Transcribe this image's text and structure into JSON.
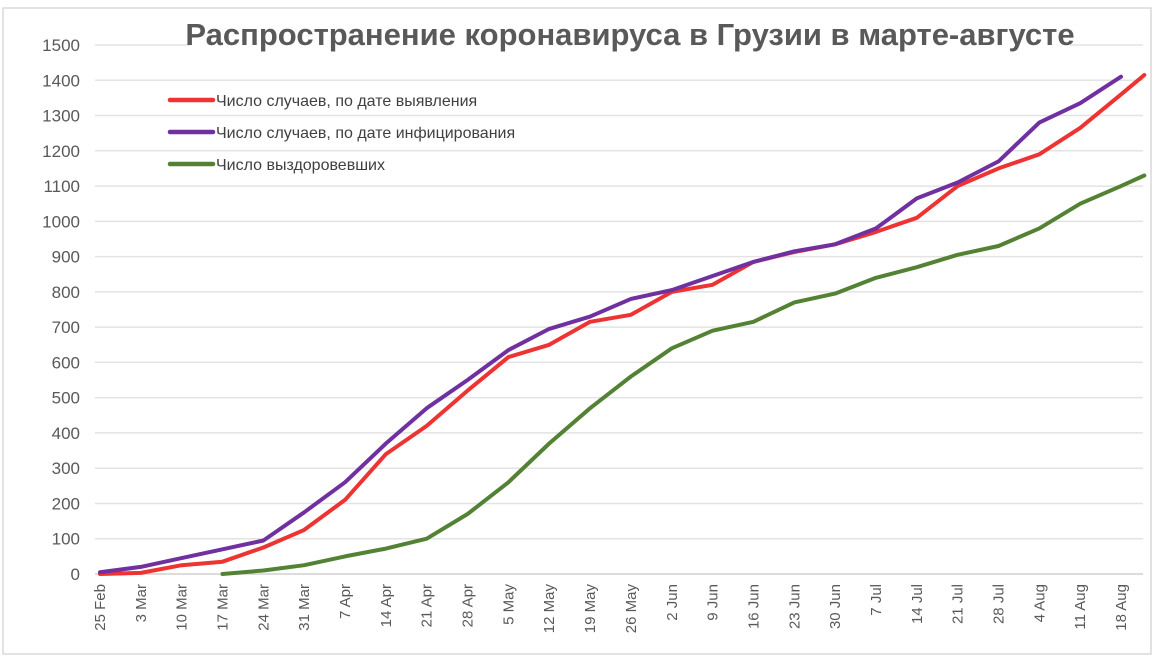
{
  "chart_data": {
    "type": "line",
    "title": "Распространение коронавируса в Грузии в марте-августе",
    "ylim": [
      0,
      1500
    ],
    "yticks": [
      0,
      100,
      200,
      300,
      400,
      500,
      600,
      700,
      800,
      900,
      1000,
      1100,
      1200,
      1300,
      1400,
      1500
    ],
    "xticks": [
      "25 Feb",
      "3 Mar",
      "10 Mar",
      "17 Mar",
      "24 Mar",
      "31 Mar",
      "7 Apr",
      "14 Apr",
      "21 Apr",
      "28 Apr",
      "5 May",
      "12 May",
      "19 May",
      "26 May",
      "2 Jun",
      "9 Jun",
      "16 Jun",
      "23 Jun",
      "30 Jun",
      "7 Jul",
      "14 Jul",
      "21 Jul",
      "28 Jul",
      "4 Aug",
      "11 Aug",
      "18 Aug"
    ],
    "grid": true,
    "legend": "top-left",
    "series": [
      {
        "name": "Число случаев, по дате выявления",
        "color": "#ee3333",
        "x": [
          "25 Feb",
          "3 Mar",
          "10 Mar",
          "17 Mar",
          "24 Mar",
          "31 Mar",
          "7 Apr",
          "14 Apr",
          "21 Apr",
          "28 Apr",
          "5 May",
          "12 May",
          "19 May",
          "26 May",
          "2 Jun",
          "9 Jun",
          "16 Jun",
          "23 Jun",
          "30 Jun",
          "7 Jul",
          "14 Jul",
          "21 Jul",
          "28 Jul",
          "4 Aug",
          "11 Aug",
          "18 Aug",
          "22 Aug"
        ],
        "values": [
          0,
          3,
          25,
          35,
          75,
          125,
          210,
          340,
          420,
          520,
          615,
          650,
          715,
          735,
          800,
          820,
          885,
          913,
          935,
          970,
          1010,
          1100,
          1150,
          1190,
          1265,
          1360,
          1415
        ]
      },
      {
        "name": "Число случаев, по дате инфицирования",
        "color": "#7030a0",
        "x": [
          "25 Feb",
          "3 Mar",
          "10 Mar",
          "17 Mar",
          "24 Mar",
          "31 Mar",
          "7 Apr",
          "14 Apr",
          "21 Apr",
          "28 Apr",
          "5 May",
          "12 May",
          "19 May",
          "26 May",
          "2 Jun",
          "9 Jun",
          "16 Jun",
          "23 Jun",
          "30 Jun",
          "7 Jul",
          "14 Jul",
          "21 Jul",
          "28 Jul",
          "4 Aug",
          "11 Aug",
          "18 Aug"
        ],
        "values": [
          5,
          20,
          45,
          70,
          95,
          175,
          260,
          370,
          470,
          550,
          635,
          695,
          730,
          780,
          805,
          845,
          885,
          915,
          935,
          980,
          1065,
          1110,
          1170,
          1280,
          1335,
          1410
        ]
      },
      {
        "name": "Число выздоровевших",
        "color": "#548235",
        "x": [
          "17 Mar",
          "24 Mar",
          "31 Mar",
          "7 Apr",
          "14 Apr",
          "21 Apr",
          "28 Apr",
          "5 May",
          "12 May",
          "19 May",
          "26 May",
          "2 Jun",
          "9 Jun",
          "16 Jun",
          "23 Jun",
          "30 Jun",
          "7 Jul",
          "14 Jul",
          "21 Jul",
          "28 Jul",
          "4 Aug",
          "11 Aug",
          "18 Aug",
          "22 Aug"
        ],
        "values": [
          0,
          10,
          25,
          50,
          72,
          100,
          170,
          260,
          370,
          470,
          560,
          640,
          690,
          715,
          770,
          795,
          840,
          870,
          905,
          930,
          980,
          1050,
          1100,
          1130
        ]
      }
    ]
  }
}
